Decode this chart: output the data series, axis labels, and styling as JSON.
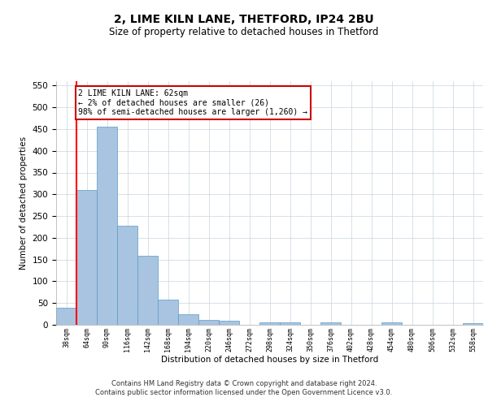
{
  "title1": "2, LIME KILN LANE, THETFORD, IP24 2BU",
  "title2": "Size of property relative to detached houses in Thetford",
  "xlabel": "Distribution of detached houses by size in Thetford",
  "ylabel": "Number of detached properties",
  "categories": [
    "38sqm",
    "64sqm",
    "90sqm",
    "116sqm",
    "142sqm",
    "168sqm",
    "194sqm",
    "220sqm",
    "246sqm",
    "272sqm",
    "298sqm",
    "324sqm",
    "350sqm",
    "376sqm",
    "402sqm",
    "428sqm",
    "454sqm",
    "480sqm",
    "506sqm",
    "532sqm",
    "558sqm"
  ],
  "values": [
    40,
    310,
    455,
    228,
    158,
    57,
    25,
    12,
    9,
    0,
    5,
    5,
    0,
    5,
    0,
    0,
    5,
    0,
    0,
    0,
    4
  ],
  "bar_color": "#a8c4e0",
  "bar_edge_color": "#5a9ac8",
  "annotation_text": "2 LIME KILN LANE: 62sqm\n← 2% of detached houses are smaller (26)\n98% of semi-detached houses are larger (1,260) →",
  "annotation_box_color": "#ffffff",
  "annotation_box_edge_color": "#cc0000",
  "property_line_x": 0.5,
  "ylim": [
    0,
    560
  ],
  "yticks": [
    0,
    50,
    100,
    150,
    200,
    250,
    300,
    350,
    400,
    450,
    500,
    550
  ],
  "footer": "Contains HM Land Registry data © Crown copyright and database right 2024.\nContains public sector information licensed under the Open Government Licence v3.0.",
  "bg_color": "#ffffff",
  "grid_color": "#c8d4e0"
}
